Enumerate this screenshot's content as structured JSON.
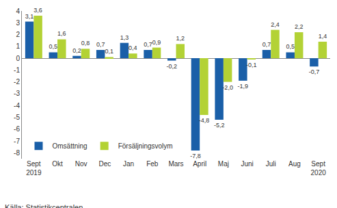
{
  "chart_data": {
    "type": "bar",
    "categories": [
      "Sept 2019",
      "Okt",
      "Nov",
      "Dec",
      "Jan",
      "Feb",
      "Mars",
      "April",
      "Maj",
      "Juni",
      "Juli",
      "Aug",
      "Sept 2020"
    ],
    "series": [
      {
        "name": "Omsättning",
        "color": "#1a5fa8",
        "values": [
          3.1,
          0.5,
          0.2,
          0.7,
          1.3,
          0.7,
          -0.2,
          -7.8,
          -5.2,
          -1.9,
          0.7,
          0.5,
          -0.7
        ],
        "value_labels": [
          "3,1",
          "0,5",
          "0,2",
          "0,7",
          "1,3",
          "0,7",
          "-0,2",
          "-7,8",
          "-5,2",
          "-1,9",
          "0,7",
          "0,5",
          "-0,7"
        ]
      },
      {
        "name": "Försäljningsvolym",
        "color": "#b3d235",
        "values": [
          3.6,
          1.6,
          0.8,
          0.1,
          0.4,
          0.9,
          1.2,
          -4.8,
          -2.0,
          -0.1,
          2.4,
          2.2,
          1.4
        ],
        "value_labels": [
          "3,6",
          "1,6",
          "0,8",
          "0,1",
          "0,4",
          "0,9",
          "1,2",
          "-4,8",
          "-2,0",
          "-0,1",
          "2,4",
          "2,2",
          "1,4"
        ]
      }
    ],
    "ylim": [
      -8.5,
      4
    ],
    "yticks": [
      -8,
      -7,
      -6,
      -5,
      -4,
      -3,
      -2,
      -1,
      0,
      1,
      2,
      3,
      4
    ],
    "grid": false,
    "data_labels": true,
    "legend": "lower left",
    "annotations": [
      "Källa: Statistikcentralen"
    ]
  }
}
